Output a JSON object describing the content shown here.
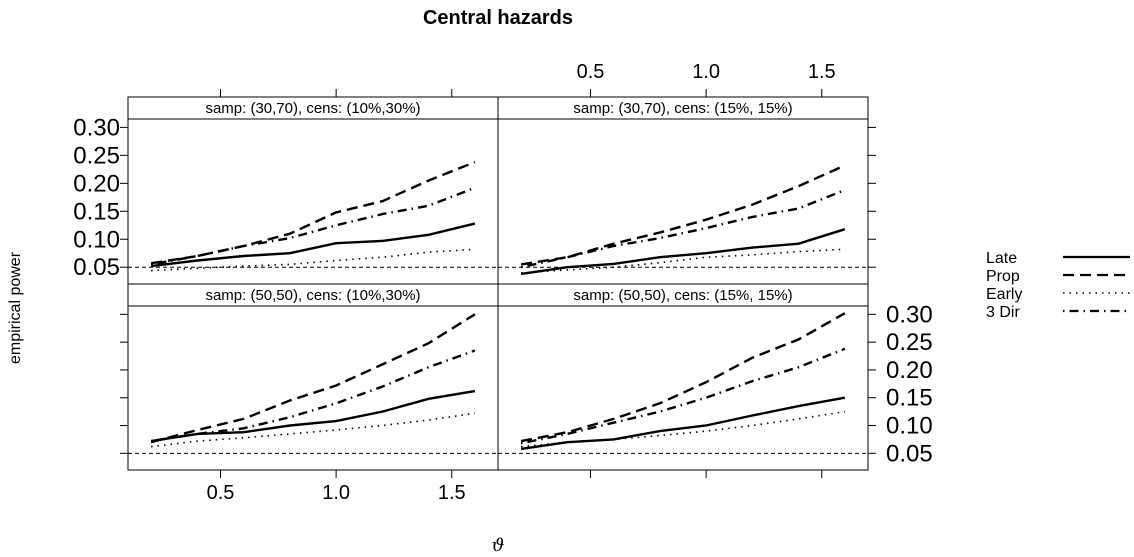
{
  "chart_data": {
    "type": "line",
    "title": "Central hazards",
    "xlabel": "ϑ",
    "ylabel": "empirical power",
    "x": [
      0.2,
      0.4,
      0.6,
      0.8,
      1.0,
      1.2,
      1.4,
      1.6
    ],
    "xlim": [
      0.1,
      1.7
    ],
    "ylim": [
      0.02,
      0.315
    ],
    "x_ticks": [
      "0.5",
      "1.0",
      "1.5"
    ],
    "y_ticks": [
      "0.05",
      "0.10",
      "0.15",
      "0.20",
      "0.25",
      "0.30"
    ],
    "reference_line": 0.05,
    "legend": {
      "position": "right",
      "entries": [
        "Late",
        "Prop",
        "Early",
        "3 Dir"
      ]
    },
    "panels": [
      {
        "strip": "samp: (30,70), cens: (10%,30%)",
        "series": [
          {
            "name": "Late",
            "style": "solid",
            "values": [
              0.052,
              0.062,
              0.07,
              0.075,
              0.093,
              0.097,
              0.108,
              0.128
            ]
          },
          {
            "name": "Prop",
            "style": "dashed",
            "values": [
              0.057,
              0.07,
              0.088,
              0.11,
              0.148,
              0.168,
              0.205,
              0.238
            ]
          },
          {
            "name": "Early",
            "style": "dotted",
            "values": [
              0.044,
              0.048,
              0.052,
              0.055,
              0.062,
              0.068,
              0.077,
              0.082
            ]
          },
          {
            "name": "3 Dir",
            "style": "dotdash",
            "values": [
              0.055,
              0.07,
              0.088,
              0.102,
              0.125,
              0.145,
              0.16,
              0.192
            ]
          }
        ]
      },
      {
        "strip": "samp: (30,70), cens: (15%, 15%)",
        "series": [
          {
            "name": "Late",
            "style": "solid",
            "values": [
              0.038,
              0.05,
              0.056,
              0.068,
              0.075,
              0.085,
              0.092,
              0.118
            ]
          },
          {
            "name": "Prop",
            "style": "dashed",
            "values": [
              0.055,
              0.068,
              0.092,
              0.112,
              0.135,
              0.162,
              0.195,
              0.232
            ]
          },
          {
            "name": "Early",
            "style": "dotted",
            "values": [
              0.04,
              0.045,
              0.05,
              0.058,
              0.068,
              0.072,
              0.078,
              0.082
            ]
          },
          {
            "name": "3 Dir",
            "style": "dotdash",
            "values": [
              0.05,
              0.068,
              0.088,
              0.102,
              0.12,
              0.14,
              0.155,
              0.188
            ]
          }
        ]
      },
      {
        "strip": "samp: (50,50), cens: (10%,30%)",
        "series": [
          {
            "name": "Late",
            "style": "solid",
            "values": [
              0.072,
              0.085,
              0.088,
              0.1,
              0.108,
              0.125,
              0.148,
              0.162
            ]
          },
          {
            "name": "Prop",
            "style": "dashed",
            "values": [
              0.07,
              0.092,
              0.112,
              0.145,
              0.172,
              0.21,
              0.248,
              0.3
            ]
          },
          {
            "name": "Early",
            "style": "dotted",
            "values": [
              0.062,
              0.072,
              0.078,
              0.085,
              0.092,
              0.1,
              0.11,
              0.122
            ]
          },
          {
            "name": "3 Dir",
            "style": "dotdash",
            "values": [
              0.072,
              0.085,
              0.095,
              0.115,
              0.14,
              0.17,
              0.205,
              0.235
            ]
          }
        ]
      },
      {
        "strip": "samp: (50,50), cens: (15%, 15%)",
        "series": [
          {
            "name": "Late",
            "style": "solid",
            "values": [
              0.058,
              0.07,
              0.075,
              0.09,
              0.1,
              0.118,
              0.135,
              0.15
            ]
          },
          {
            "name": "Prop",
            "style": "dashed",
            "values": [
              0.072,
              0.088,
              0.112,
              0.14,
              0.178,
              0.222,
              0.255,
              0.302
            ]
          },
          {
            "name": "Early",
            "style": "dotted",
            "values": [
              0.062,
              0.07,
              0.075,
              0.082,
              0.09,
              0.1,
              0.112,
              0.125
            ]
          },
          {
            "name": "3 Dir",
            "style": "dotdash",
            "values": [
              0.068,
              0.085,
              0.105,
              0.125,
              0.15,
              0.18,
              0.205,
              0.238
            ]
          }
        ]
      }
    ]
  }
}
